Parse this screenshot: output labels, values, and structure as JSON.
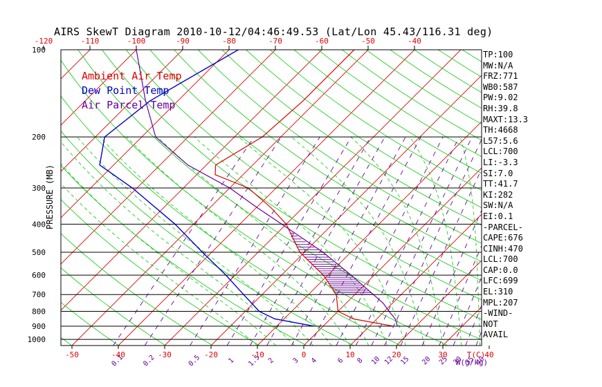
{
  "chart_data": {
    "type": "skewt",
    "title": "AIRS SkewT Diagram 2010-10-12/04:46:49.53 (Lat/Lon 45.43/116.31 deg)",
    "ylabel": "PRESSURE (MB)",
    "xlabel": "T(C)",
    "mixing_ratio_unit": "W(g/kg)",
    "pressure_levels": [
      100,
      200,
      300,
      400,
      500,
      600,
      700,
      800,
      900,
      1000
    ],
    "top_temperature_ticks": [
      -120,
      -110,
      -100,
      -90,
      -80,
      -70,
      -60,
      -50,
      -40
    ],
    "bottom_temperature_ticks": [
      -50,
      -40,
      -30,
      -20,
      -10,
      0,
      10,
      20,
      30,
      40
    ],
    "mixing_ratio_ticks": [
      "0.1",
      "0.2",
      "0.5",
      "1",
      "1.5",
      "2",
      "3",
      "4",
      "6",
      "8",
      "10",
      "12",
      "15",
      "20",
      "25",
      "30",
      "35",
      "40"
    ],
    "legend": [
      {
        "label": "Ambient Air Temp",
        "color": "#dd0000"
      },
      {
        "label": "Dew Point Temp",
        "color": "#0000cc"
      },
      {
        "label": "Air Parcel Temp",
        "color": "#660099"
      }
    ],
    "series": [
      {
        "name": "Ambient Air Temp",
        "color": "#dd0000",
        "points": [
          [
            100,
            -53
          ],
          [
            150,
            -53
          ],
          [
            200,
            -54
          ],
          [
            250,
            -58
          ],
          [
            270,
            -56
          ],
          [
            300,
            -46
          ],
          [
            350,
            -37
          ],
          [
            400,
            -30
          ],
          [
            500,
            -21
          ],
          [
            600,
            -11
          ],
          [
            700,
            -4
          ],
          [
            800,
            0
          ],
          [
            850,
            5
          ],
          [
            900,
            15
          ]
        ]
      },
      {
        "name": "Dew Point Temp",
        "color": "#0000cc",
        "points": [
          [
            100,
            -78
          ],
          [
            150,
            -86
          ],
          [
            200,
            -88
          ],
          [
            250,
            -83
          ],
          [
            300,
            -71
          ],
          [
            400,
            -54
          ],
          [
            500,
            -42
          ],
          [
            600,
            -32
          ],
          [
            700,
            -24
          ],
          [
            800,
            -17
          ],
          [
            850,
            -12
          ],
          [
            900,
            -2
          ]
        ]
      },
      {
        "name": "Air Parcel Temp",
        "color": "#660099",
        "points": [
          [
            100,
            -100
          ],
          [
            150,
            -87
          ],
          [
            200,
            -77
          ],
          [
            250,
            -64
          ],
          [
            300,
            -50
          ],
          [
            350,
            -40
          ],
          [
            400,
            -31
          ],
          [
            500,
            -16
          ],
          [
            600,
            -5
          ],
          [
            700,
            4
          ],
          [
            750,
            8
          ],
          [
            800,
            11
          ],
          [
            850,
            14
          ],
          [
            900,
            16
          ]
        ]
      }
    ]
  },
  "stats": [
    "TP:100",
    "MW:N/A",
    "FRZ:771",
    "WB0:587",
    "PW:9.02",
    "RH:39.8",
    "MAXT:13.3",
    "TH:4668",
    "L57:5.6",
    "LCL:700",
    "LI:-3.3",
    "SI:7.0",
    "TT:41.7",
    "KI:282",
    "SW:N/A",
    "EI:0.1",
    "-PARCEL-",
    "CAPE:676",
    "CINH:470",
    "LCL:700",
    "CAP:0.0",
    "LFC:699",
    "EL:310",
    "MPL:207",
    "-WIND-",
    "NOT",
    "AVAIL"
  ]
}
